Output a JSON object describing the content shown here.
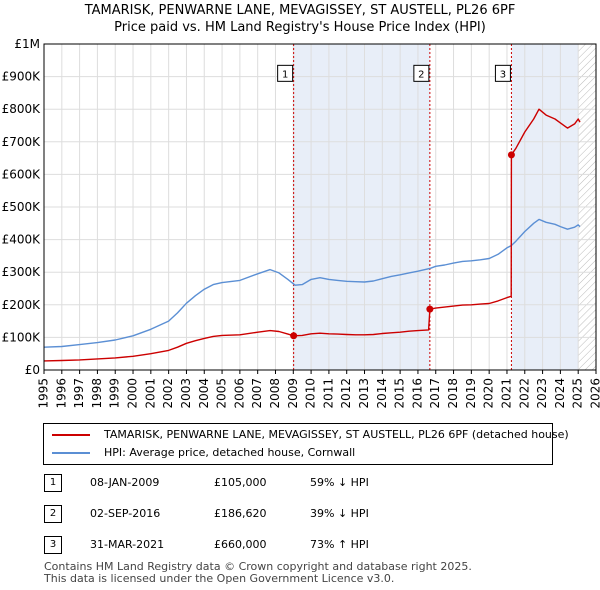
{
  "title_line1": "TAMARISK, PENWARNE LANE, MEVAGISSEY, ST AUSTELL, PL26 6PF",
  "title_line2": "Price paid vs. HM Land Registry's House Price Index (HPI)",
  "legend": {
    "property_label": "TAMARISK, PENWARNE LANE, MEVAGISSEY, ST AUSTELL, PL26 6PF (detached house)",
    "hpi_label": "HPI: Average price, detached house, Cornwall"
  },
  "colors": {
    "property": "#cc0000",
    "hpi": "#5b8fd4",
    "shade": "#e8eef8",
    "grid": "#dddddd",
    "marker": "#cc0000"
  },
  "transactions": [
    {
      "num": "1",
      "date": "08-JAN-2009",
      "price": "£105,000",
      "hpi": "59% ↓ HPI"
    },
    {
      "num": "2",
      "date": "02-SEP-2016",
      "price": "£186,620",
      "hpi": "39% ↓ HPI"
    },
    {
      "num": "3",
      "date": "31-MAR-2021",
      "price": "£660,000",
      "hpi": "73% ↑ HPI"
    }
  ],
  "footer_line1": "Contains HM Land Registry data © Crown copyright and database right 2025.",
  "footer_line2": "This data is licensed under the Open Government Licence v3.0.",
  "chart_data": {
    "type": "line",
    "xlim": [
      1995,
      2026
    ],
    "ylim": [
      0,
      1000000
    ],
    "y_ticks": [
      0,
      100000,
      200000,
      300000,
      400000,
      500000,
      600000,
      700000,
      800000,
      900000,
      1000000
    ],
    "y_tick_labels": [
      "£0",
      "£100K",
      "£200K",
      "£300K",
      "£400K",
      "£500K",
      "£600K",
      "£700K",
      "£800K",
      "£900K",
      "£1M"
    ],
    "x_ticks": [
      1995,
      1996,
      1997,
      1998,
      1999,
      2000,
      2001,
      2002,
      2003,
      2004,
      2005,
      2006,
      2007,
      2008,
      2009,
      2010,
      2011,
      2012,
      2013,
      2014,
      2015,
      2016,
      2017,
      2018,
      2019,
      2020,
      2021,
      2022,
      2023,
      2024,
      2025,
      2026
    ],
    "x_tick_labels": [
      "1995",
      "1996",
      "1997",
      "1998",
      "1999",
      "2000",
      "2001",
      "2002",
      "2003",
      "2004",
      "2005",
      "2006",
      "2007",
      "2008",
      "2009",
      "2010",
      "2011",
      "2012",
      "2013",
      "2014",
      "2015",
      "2016",
      "2017",
      "2018",
      "2019",
      "2020",
      "2021",
      "2022",
      "2023",
      "2024",
      "2025",
      "2026"
    ],
    "shaded_ranges": [
      [
        2009.02,
        2016.67
      ],
      [
        2021.25,
        2025.0
      ]
    ],
    "hatched_range": [
      2025.0,
      2026
    ],
    "series": [
      {
        "name": "HPI: Average price, detached house, Cornwall",
        "points": [
          [
            1995.0,
            70000
          ],
          [
            1996.0,
            72000
          ],
          [
            1997.0,
            78000
          ],
          [
            1998.0,
            84000
          ],
          [
            1999.0,
            92000
          ],
          [
            2000.0,
            105000
          ],
          [
            2001.0,
            125000
          ],
          [
            2002.0,
            150000
          ],
          [
            2002.5,
            175000
          ],
          [
            2003.0,
            205000
          ],
          [
            2003.5,
            228000
          ],
          [
            2004.0,
            248000
          ],
          [
            2004.5,
            262000
          ],
          [
            2005.0,
            268000
          ],
          [
            2006.0,
            275000
          ],
          [
            2007.0,
            295000
          ],
          [
            2007.7,
            308000
          ],
          [
            2008.2,
            298000
          ],
          [
            2008.7,
            278000
          ],
          [
            2009.1,
            260000
          ],
          [
            2009.5,
            262000
          ],
          [
            2010.0,
            278000
          ],
          [
            2010.5,
            283000
          ],
          [
            2011.0,
            278000
          ],
          [
            2011.5,
            275000
          ],
          [
            2012.0,
            272000
          ],
          [
            2012.5,
            271000
          ],
          [
            2013.0,
            270000
          ],
          [
            2013.5,
            273000
          ],
          [
            2014.0,
            280000
          ],
          [
            2014.5,
            287000
          ],
          [
            2015.0,
            292000
          ],
          [
            2015.5,
            298000
          ],
          [
            2016.0,
            303000
          ],
          [
            2016.7,
            312000
          ],
          [
            2017.0,
            318000
          ],
          [
            2017.5,
            322000
          ],
          [
            2018.0,
            328000
          ],
          [
            2018.5,
            333000
          ],
          [
            2019.0,
            335000
          ],
          [
            2019.5,
            338000
          ],
          [
            2020.0,
            342000
          ],
          [
            2020.5,
            355000
          ],
          [
            2021.0,
            375000
          ],
          [
            2021.25,
            382000
          ],
          [
            2021.5,
            395000
          ],
          [
            2022.0,
            425000
          ],
          [
            2022.5,
            450000
          ],
          [
            2022.8,
            462000
          ],
          [
            2023.2,
            453000
          ],
          [
            2023.7,
            447000
          ],
          [
            2024.0,
            440000
          ],
          [
            2024.4,
            432000
          ],
          [
            2024.8,
            438000
          ],
          [
            2025.0,
            445000
          ],
          [
            2025.1,
            440000
          ]
        ]
      },
      {
        "name": "TAMARISK, PENWARNE LANE, MEVAGISSEY, ST AUSTELL, PL26 6PF (detached house)",
        "points": [
          [
            1995.0,
            28000
          ],
          [
            1996.0,
            29000
          ],
          [
            1997.0,
            31000
          ],
          [
            1998.0,
            34000
          ],
          [
            1999.0,
            37000
          ],
          [
            2000.0,
            42000
          ],
          [
            2001.0,
            50000
          ],
          [
            2002.0,
            60000
          ],
          [
            2002.5,
            70000
          ],
          [
            2003.0,
            82000
          ],
          [
            2003.5,
            90000
          ],
          [
            2004.0,
            97000
          ],
          [
            2004.5,
            103000
          ],
          [
            2005.0,
            106000
          ],
          [
            2006.0,
            108000
          ],
          [
            2007.0,
            116000
          ],
          [
            2007.7,
            121000
          ],
          [
            2008.2,
            118000
          ],
          [
            2008.7,
            110000
          ],
          [
            2009.02,
            105000
          ],
          [
            2009.5,
            106000
          ],
          [
            2010.0,
            111000
          ],
          [
            2010.5,
            113000
          ],
          [
            2011.0,
            111000
          ],
          [
            2011.5,
            110000
          ],
          [
            2012.0,
            109000
          ],
          [
            2012.5,
            108000
          ],
          [
            2013.0,
            108000
          ],
          [
            2013.5,
            109000
          ],
          [
            2014.0,
            112000
          ],
          [
            2014.5,
            114000
          ],
          [
            2015.0,
            116000
          ],
          [
            2015.5,
            119000
          ],
          [
            2016.0,
            121000
          ],
          [
            2016.6,
            123000
          ],
          [
            2016.67,
            186620
          ],
          [
            2017.0,
            190000
          ],
          [
            2017.5,
            193000
          ],
          [
            2018.0,
            196000
          ],
          [
            2018.5,
            199000
          ],
          [
            2019.0,
            200000
          ],
          [
            2019.5,
            202000
          ],
          [
            2020.0,
            204000
          ],
          [
            2020.5,
            212000
          ],
          [
            2021.0,
            222000
          ],
          [
            2021.24,
            226000
          ],
          [
            2021.25,
            660000
          ],
          [
            2021.5,
            680000
          ],
          [
            2022.0,
            730000
          ],
          [
            2022.5,
            770000
          ],
          [
            2022.8,
            800000
          ],
          [
            2023.2,
            782000
          ],
          [
            2023.7,
            770000
          ],
          [
            2024.0,
            758000
          ],
          [
            2024.4,
            742000
          ],
          [
            2024.8,
            755000
          ],
          [
            2025.0,
            770000
          ],
          [
            2025.1,
            760000
          ]
        ]
      }
    ],
    "sales": [
      {
        "label": "1",
        "x": 2009.02,
        "y": 105000
      },
      {
        "label": "2",
        "x": 2016.67,
        "y": 186620
      },
      {
        "label": "3",
        "x": 2021.25,
        "y": 660000
      }
    ]
  }
}
